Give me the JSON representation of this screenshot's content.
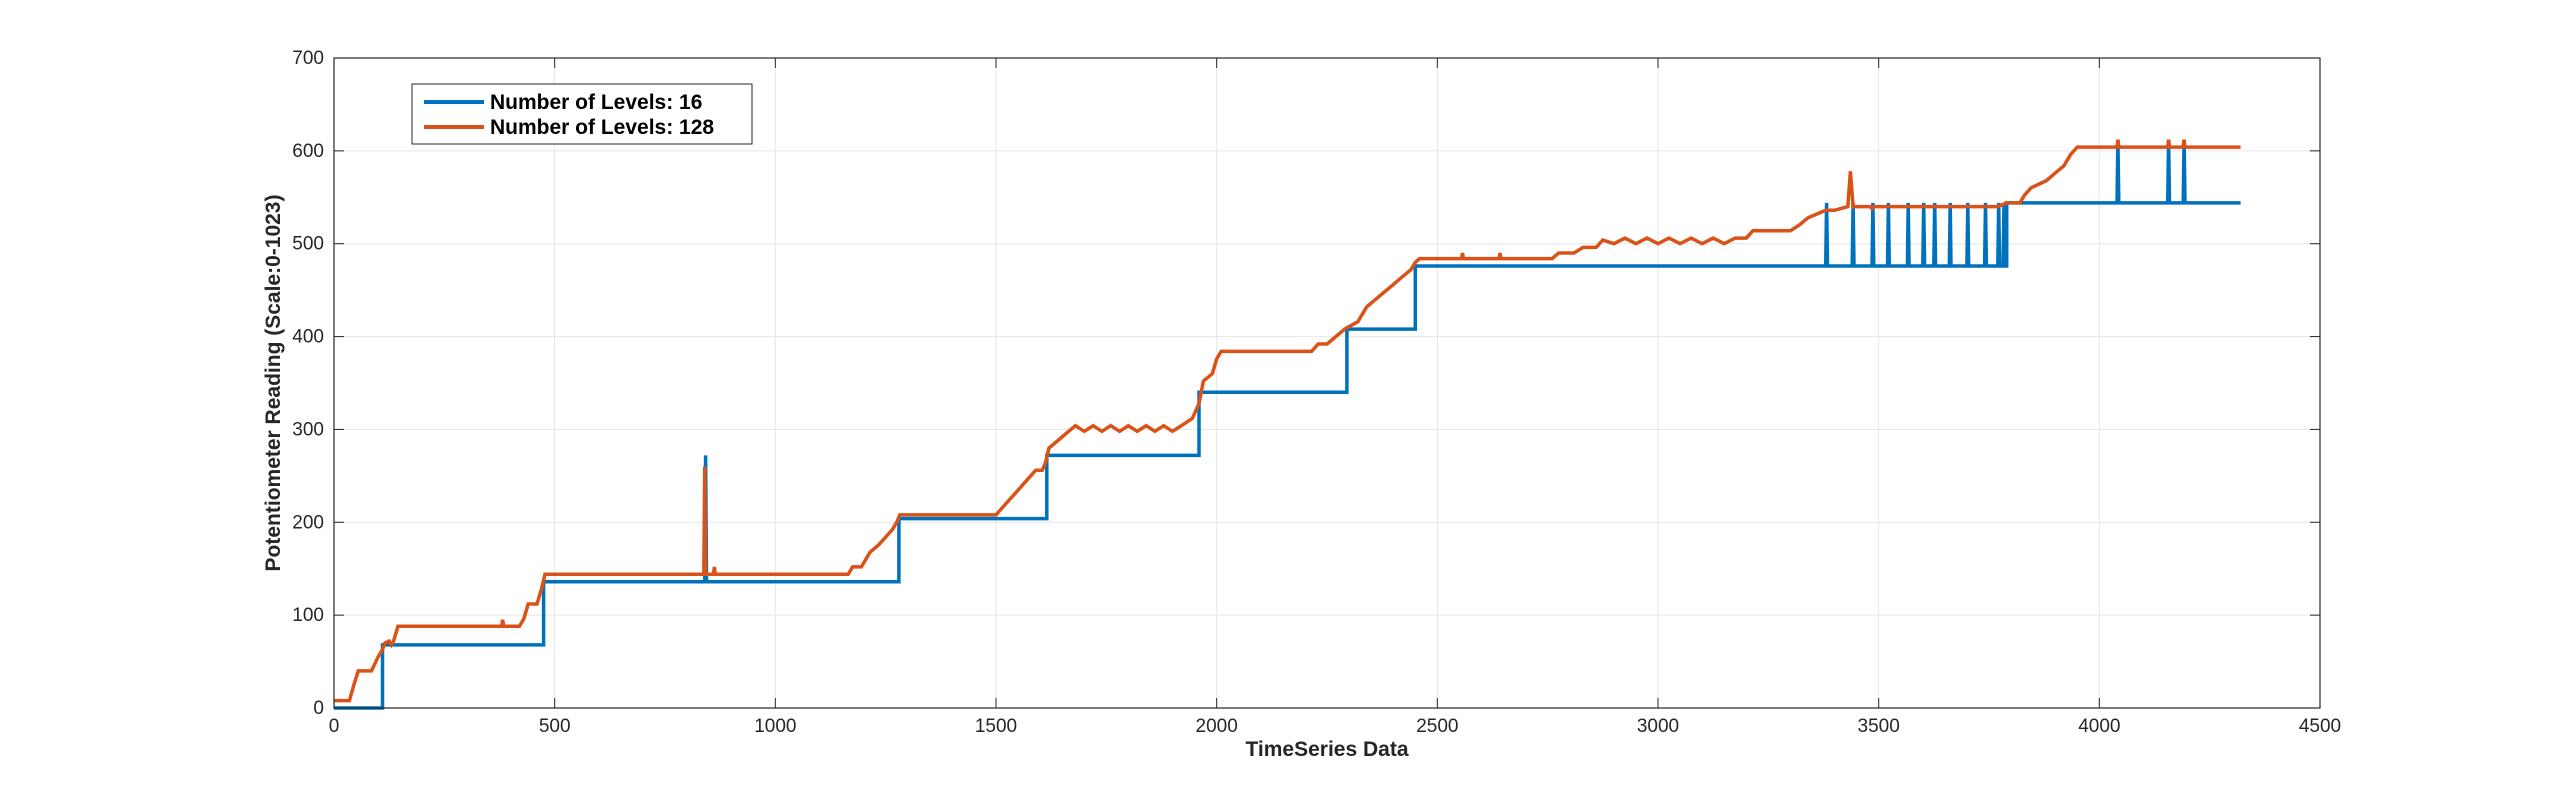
{
  "chart_data": {
    "type": "line",
    "title": "",
    "xlabel": "TimeSeries Data",
    "ylabel": "Potentiometer Reading (Scale:0-1023)",
    "xlim": [
      0,
      4500
    ],
    "ylim": [
      0,
      700
    ],
    "xticks": [
      0,
      500,
      1000,
      1500,
      2000,
      2500,
      3000,
      3500,
      4000,
      4500
    ],
    "yticks": [
      0,
      100,
      200,
      300,
      400,
      500,
      600,
      700
    ],
    "grid": true,
    "legend_position": "top-left",
    "series": [
      {
        "name": "Number of Levels: 16",
        "color": "#0072BD",
        "points": [
          [
            0,
            0
          ],
          [
            110,
            0
          ],
          [
            110,
            68
          ],
          [
            475,
            68
          ],
          [
            475,
            136
          ],
          [
            840,
            136
          ],
          [
            842,
            272
          ],
          [
            844,
            136
          ],
          [
            1280,
            136
          ],
          [
            1280,
            204
          ],
          [
            1615,
            204
          ],
          [
            1615,
            272
          ],
          [
            1960,
            272
          ],
          [
            1960,
            340
          ],
          [
            2295,
            340
          ],
          [
            2295,
            408
          ],
          [
            2450,
            408
          ],
          [
            2450,
            476
          ],
          [
            3380,
            476
          ],
          [
            3382,
            544
          ],
          [
            3384,
            476
          ],
          [
            3440,
            476
          ],
          [
            3442,
            544
          ],
          [
            3444,
            476
          ],
          [
            3485,
            476
          ],
          [
            3487,
            544
          ],
          [
            3489,
            476
          ],
          [
            3520,
            476
          ],
          [
            3522,
            544
          ],
          [
            3524,
            476
          ],
          [
            3565,
            476
          ],
          [
            3567,
            544
          ],
          [
            3569,
            476
          ],
          [
            3600,
            476
          ],
          [
            3602,
            544
          ],
          [
            3604,
            476
          ],
          [
            3625,
            476
          ],
          [
            3627,
            544
          ],
          [
            3629,
            476
          ],
          [
            3660,
            476
          ],
          [
            3662,
            544
          ],
          [
            3664,
            476
          ],
          [
            3700,
            476
          ],
          [
            3702,
            544
          ],
          [
            3704,
            476
          ],
          [
            3740,
            476
          ],
          [
            3742,
            544
          ],
          [
            3744,
            476
          ],
          [
            3770,
            476
          ],
          [
            3772,
            544
          ],
          [
            3774,
            476
          ],
          [
            3782,
            476
          ],
          [
            3784,
            544
          ],
          [
            3786,
            476
          ],
          [
            3790,
            476
          ],
          [
            3790,
            544
          ],
          [
            4040,
            544
          ],
          [
            4042,
            612
          ],
          [
            4044,
            544
          ],
          [
            4155,
            544
          ],
          [
            4157,
            612
          ],
          [
            4159,
            544
          ],
          [
            4190,
            544
          ],
          [
            4192,
            612
          ],
          [
            4194,
            544
          ],
          [
            4320,
            544
          ]
        ]
      },
      {
        "name": "Number of Levels: 128",
        "color": "#D95319",
        "points": [
          [
            0,
            8
          ],
          [
            35,
            8
          ],
          [
            45,
            25
          ],
          [
            55,
            40
          ],
          [
            85,
            40
          ],
          [
            100,
            55
          ],
          [
            110,
            63
          ],
          [
            115,
            70
          ],
          [
            125,
            72
          ],
          [
            130,
            68
          ],
          [
            135,
            72
          ],
          [
            145,
            88
          ],
          [
            380,
            88
          ],
          [
            382,
            95
          ],
          [
            385,
            88
          ],
          [
            420,
            88
          ],
          [
            430,
            96
          ],
          [
            440,
            112
          ],
          [
            460,
            112
          ],
          [
            470,
            128
          ],
          [
            478,
            144
          ],
          [
            838,
            144
          ],
          [
            840,
            260
          ],
          [
            842,
            144
          ],
          [
            860,
            144
          ],
          [
            862,
            152
          ],
          [
            864,
            144
          ],
          [
            1165,
            144
          ],
          [
            1175,
            152
          ],
          [
            1195,
            152
          ],
          [
            1205,
            160
          ],
          [
            1215,
            168
          ],
          [
            1235,
            176
          ],
          [
            1250,
            184
          ],
          [
            1265,
            192
          ],
          [
            1275,
            200
          ],
          [
            1282,
            208
          ],
          [
            1500,
            208
          ],
          [
            1515,
            216
          ],
          [
            1530,
            224
          ],
          [
            1545,
            232
          ],
          [
            1560,
            240
          ],
          [
            1575,
            248
          ],
          [
            1590,
            256
          ],
          [
            1605,
            256
          ],
          [
            1612,
            264
          ],
          [
            1620,
            280
          ],
          [
            1640,
            288
          ],
          [
            1660,
            296
          ],
          [
            1680,
            304
          ],
          [
            1700,
            298
          ],
          [
            1720,
            304
          ],
          [
            1740,
            298
          ],
          [
            1760,
            304
          ],
          [
            1780,
            298
          ],
          [
            1800,
            304
          ],
          [
            1820,
            298
          ],
          [
            1840,
            304
          ],
          [
            1860,
            298
          ],
          [
            1880,
            304
          ],
          [
            1900,
            298
          ],
          [
            1920,
            304
          ],
          [
            1945,
            312
          ],
          [
            1960,
            328
          ],
          [
            1970,
            352
          ],
          [
            1990,
            360
          ],
          [
            2000,
            376
          ],
          [
            2010,
            384
          ],
          [
            2215,
            384
          ],
          [
            2230,
            392
          ],
          [
            2250,
            392
          ],
          [
            2270,
            400
          ],
          [
            2290,
            408
          ],
          [
            2320,
            416
          ],
          [
            2340,
            432
          ],
          [
            2360,
            440
          ],
          [
            2380,
            448
          ],
          [
            2400,
            456
          ],
          [
            2420,
            464
          ],
          [
            2440,
            472
          ],
          [
            2450,
            480
          ],
          [
            2460,
            484
          ],
          [
            2555,
            484
          ],
          [
            2557,
            490
          ],
          [
            2559,
            484
          ],
          [
            2640,
            484
          ],
          [
            2642,
            490
          ],
          [
            2644,
            484
          ],
          [
            2760,
            484
          ],
          [
            2775,
            490
          ],
          [
            2810,
            490
          ],
          [
            2830,
            496
          ],
          [
            2860,
            496
          ],
          [
            2875,
            504
          ],
          [
            2900,
            500
          ],
          [
            2925,
            506
          ],
          [
            2950,
            500
          ],
          [
            2975,
            506
          ],
          [
            3000,
            500
          ],
          [
            3025,
            506
          ],
          [
            3050,
            500
          ],
          [
            3075,
            506
          ],
          [
            3100,
            500
          ],
          [
            3125,
            506
          ],
          [
            3150,
            500
          ],
          [
            3175,
            506
          ],
          [
            3200,
            506
          ],
          [
            3215,
            514
          ],
          [
            3300,
            514
          ],
          [
            3320,
            520
          ],
          [
            3340,
            528
          ],
          [
            3380,
            536
          ],
          [
            3400,
            536
          ],
          [
            3430,
            540
          ],
          [
            3436,
            578
          ],
          [
            3442,
            540
          ],
          [
            3480,
            540
          ],
          [
            3485,
            538
          ],
          [
            3490,
            540
          ],
          [
            3770,
            540
          ],
          [
            3790,
            544
          ],
          [
            3820,
            544
          ],
          [
            3830,
            552
          ],
          [
            3845,
            560
          ],
          [
            3880,
            568
          ],
          [
            3900,
            576
          ],
          [
            3920,
            584
          ],
          [
            3935,
            596
          ],
          [
            3950,
            604
          ],
          [
            4040,
            604
          ],
          [
            4042,
            612
          ],
          [
            4044,
            604
          ],
          [
            4155,
            604
          ],
          [
            4157,
            612
          ],
          [
            4159,
            604
          ],
          [
            4190,
            604
          ],
          [
            4192,
            612
          ],
          [
            4194,
            604
          ],
          [
            4320,
            604
          ]
        ]
      }
    ]
  }
}
